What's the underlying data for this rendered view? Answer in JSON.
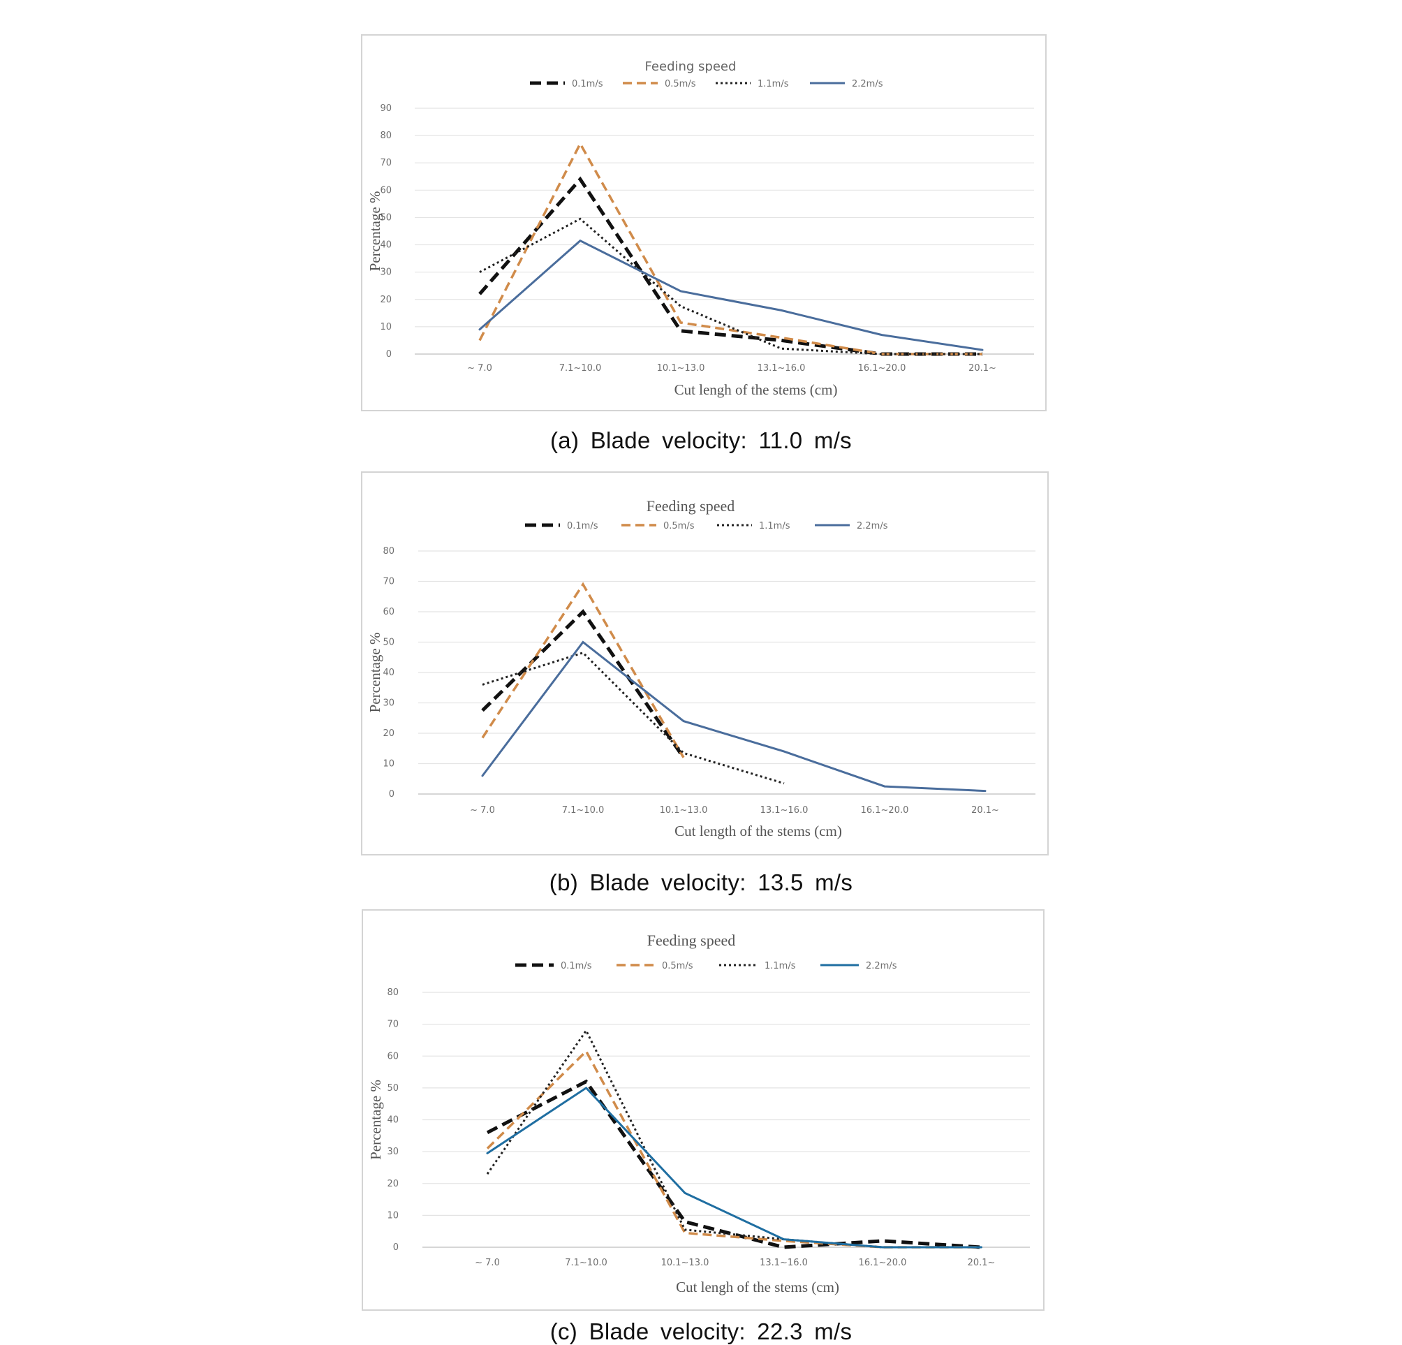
{
  "colors": {
    "s0": "#111111",
    "s1": "#d08b4a",
    "s2": "#222222",
    "s3": "#4a6d9c",
    "s3c": "#1f6ea1",
    "grid": "#e4e4e4",
    "axis": "#c8c8c8"
  },
  "chart_data": [
    {
      "type": "line",
      "title": "Feeding speed",
      "caption": "(a)  Blade  velocity:  11.0  m/s",
      "xlabel": "Cut lengh  of the  stems  (cm)",
      "ylabel": "Percentage %",
      "categories": [
        "~ 7.0",
        "7.1~10.0",
        "10.1~13.0",
        "13.1~16.0",
        "16.1~20.0",
        "20.1~"
      ],
      "y_ticks": [
        0,
        10,
        20,
        30,
        40,
        50,
        60,
        70,
        80,
        90
      ],
      "ylim": [
        0,
        90
      ],
      "grid": true,
      "legend_position": "top",
      "series": [
        {
          "name": "0.1m/s",
          "values": [
            22,
            64,
            8.5,
            5,
            0,
            0
          ]
        },
        {
          "name": "0.5m/s",
          "values": [
            5,
            77,
            11.5,
            6,
            0,
            0
          ]
        },
        {
          "name": "1.1m/s",
          "values": [
            30,
            49.5,
            17.5,
            2,
            0,
            0
          ]
        },
        {
          "name": "2.2m/s",
          "values": [
            9,
            41.5,
            23,
            16,
            7,
            1.5
          ]
        }
      ]
    },
    {
      "type": "line",
      "title": "Feeding  speed",
      "caption": "(b)  Blade  velocity:  13.5  m/s",
      "xlabel": "Cut length  of the  stems  (cm)",
      "ylabel": "Percentage %",
      "categories": [
        "~ 7.0",
        "7.1~10.0",
        "10.1~13.0",
        "13.1~16.0",
        "16.1~20.0",
        "20.1~"
      ],
      "y_ticks": [
        0,
        10,
        20,
        30,
        40,
        50,
        60,
        70,
        80
      ],
      "ylim": [
        0,
        80
      ],
      "grid": true,
      "legend_position": "top",
      "series": [
        {
          "name": "0.1m/s",
          "values": [
            27.5,
            60,
            12,
            null,
            null,
            null
          ]
        },
        {
          "name": "0.5m/s",
          "values": [
            18.5,
            69,
            12,
            null,
            null,
            null
          ]
        },
        {
          "name": "1.1m/s",
          "values": [
            36,
            46.5,
            13.5,
            3.5,
            null,
            null
          ]
        },
        {
          "name": "2.2m/s",
          "values": [
            6,
            50,
            24,
            14,
            2.5,
            1
          ]
        }
      ]
    },
    {
      "type": "line",
      "title": "Feeding  speed",
      "caption": "(c)  Blade  velocity:  22.3  m/s",
      "xlabel": "Cut lengh  of the  stems  (cm)",
      "ylabel": "Percentage %",
      "categories": [
        "~ 7.0",
        "7.1~10.0",
        "10.1~13.0",
        "13.1~16.0",
        "16.1~20.0",
        "20.1~"
      ],
      "y_ticks": [
        0,
        10,
        20,
        30,
        40,
        50,
        60,
        70,
        80
      ],
      "ylim": [
        0,
        80
      ],
      "grid": true,
      "legend_position": "top",
      "series": [
        {
          "name": "0.1m/s",
          "values": [
            36,
            52,
            8,
            0,
            2,
            0
          ]
        },
        {
          "name": "0.5m/s",
          "values": [
            31,
            61.5,
            4.5,
            2,
            0,
            0
          ]
        },
        {
          "name": "1.1m/s",
          "values": [
            23,
            68,
            5.5,
            2.5,
            0,
            0
          ]
        },
        {
          "name": "2.2m/s",
          "values": [
            29.5,
            50,
            17,
            2.5,
            0,
            0
          ]
        }
      ]
    }
  ]
}
